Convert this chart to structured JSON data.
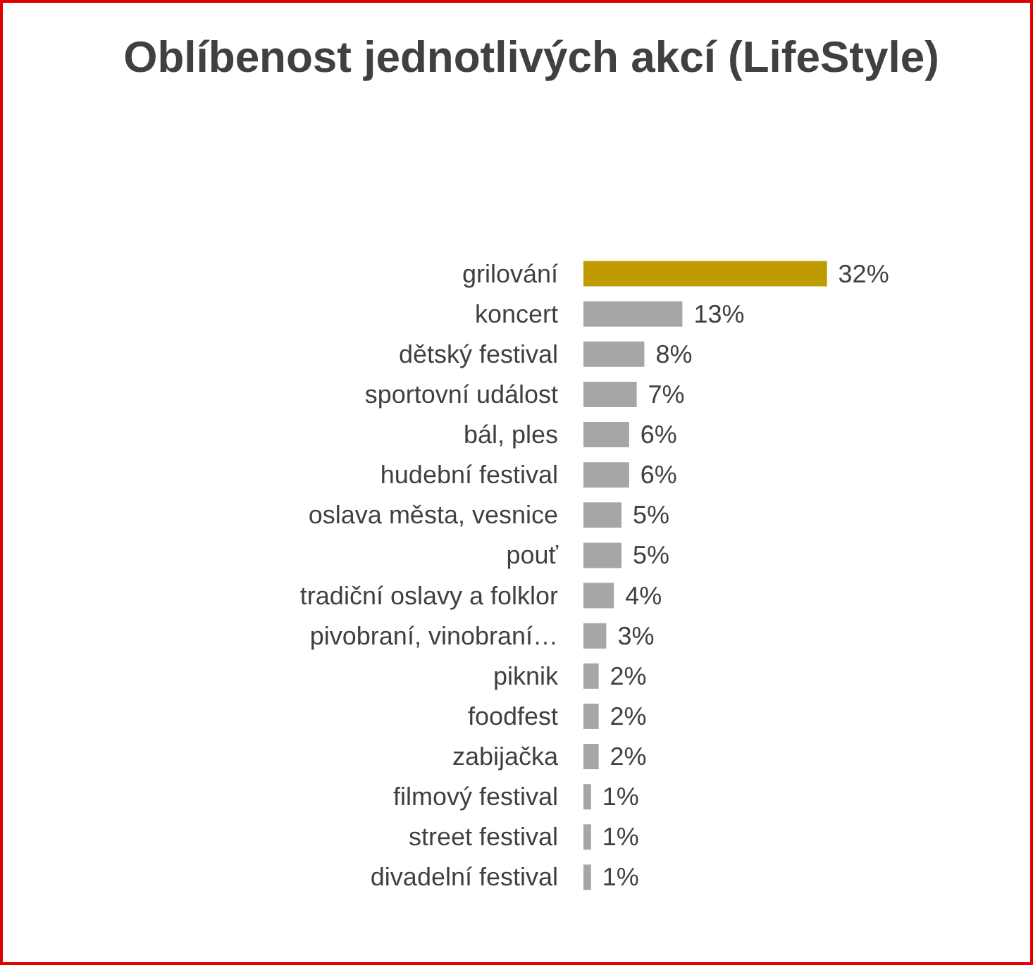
{
  "chart_data": {
    "type": "bar",
    "orientation": "horizontal",
    "title": "Oblíbenost jednotlivých akcí (LifeStyle)",
    "categories": [
      "grilování",
      "koncert",
      "dětský festival",
      "sportovní událost",
      "bál, ples",
      "hudební festival",
      "oslava města, vesnice",
      "pouť",
      "tradiční oslavy a folklor",
      "pivobraní, vinobraní…",
      "piknik",
      "foodfest",
      "zabijačka",
      "filmový festival",
      "street festival",
      "divadelní festival"
    ],
    "values": [
      32,
      13,
      8,
      7,
      6,
      6,
      5,
      5,
      4,
      3,
      2,
      2,
      2,
      1,
      1,
      1
    ],
    "value_labels": [
      "32%",
      "13%",
      "8%",
      "7%",
      "6%",
      "6%",
      "5%",
      "5%",
      "4%",
      "3%",
      "2%",
      "2%",
      "2%",
      "1%",
      "1%",
      "1%"
    ],
    "colors": [
      "#bf9a00",
      "#a6a6a6",
      "#a6a6a6",
      "#a6a6a6",
      "#a6a6a6",
      "#a6a6a6",
      "#a6a6a6",
      "#a6a6a6",
      "#a6a6a6",
      "#a6a6a6",
      "#a6a6a6",
      "#a6a6a6",
      "#a6a6a6",
      "#a6a6a6",
      "#a6a6a6",
      "#a6a6a6"
    ]
  }
}
